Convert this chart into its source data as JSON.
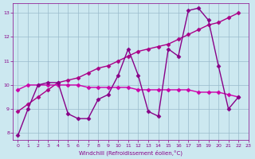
{
  "xlabel": "Windchill (Refroidissement éolien,°C)",
  "ylabel": "",
  "bg_color": "#cce8f0",
  "line1_color": "#880088",
  "line2_color": "#aa0088",
  "line3_color": "#cc00aa",
  "line1_x": [
    0,
    1,
    2,
    3,
    4,
    5,
    6,
    7,
    8,
    9,
    10,
    11,
    12,
    13,
    14,
    15,
    16,
    17,
    18,
    19,
    20,
    21,
    22
  ],
  "line1_y": [
    7.9,
    9.0,
    10.0,
    10.1,
    10.1,
    8.8,
    8.6,
    8.6,
    9.4,
    9.6,
    10.4,
    11.5,
    10.4,
    8.9,
    8.7,
    11.5,
    11.2,
    13.1,
    13.2,
    12.7,
    10.8,
    9.0,
    9.5
  ],
  "line2_x": [
    0,
    1,
    2,
    3,
    4,
    5,
    6,
    7,
    8,
    9,
    10,
    11,
    12,
    13,
    14,
    15,
    16,
    17,
    18,
    19,
    20,
    21,
    22
  ],
  "line2_y": [
    8.9,
    9.2,
    9.5,
    9.8,
    10.1,
    10.2,
    10.3,
    10.5,
    10.7,
    10.8,
    11.0,
    11.2,
    11.4,
    11.5,
    11.6,
    11.7,
    11.9,
    12.1,
    12.3,
    12.5,
    12.6,
    12.8,
    13.0
  ],
  "line3_x": [
    0,
    1,
    2,
    3,
    4,
    5,
    6,
    7,
    8,
    9,
    10,
    11,
    12,
    13,
    14,
    15,
    16,
    17,
    18,
    19,
    20,
    21,
    22
  ],
  "line3_y": [
    9.8,
    10.0,
    10.0,
    10.0,
    10.0,
    10.0,
    10.0,
    9.9,
    9.9,
    9.9,
    9.9,
    9.9,
    9.8,
    9.8,
    9.8,
    9.8,
    9.8,
    9.8,
    9.7,
    9.7,
    9.7,
    9.6,
    9.5
  ],
  "ylim": [
    7.7,
    13.4
  ],
  "xlim": [
    -0.5,
    23
  ],
  "yticks": [
    8,
    9,
    10,
    11,
    12,
    13
  ],
  "xticks": [
    0,
    1,
    2,
    3,
    4,
    5,
    6,
    7,
    8,
    9,
    10,
    11,
    12,
    13,
    14,
    15,
    16,
    17,
    18,
    19,
    20,
    21,
    22,
    23
  ],
  "grid_color": "#99bbcc",
  "marker": "D",
  "markersize": 2.5,
  "linewidth": 1.0
}
